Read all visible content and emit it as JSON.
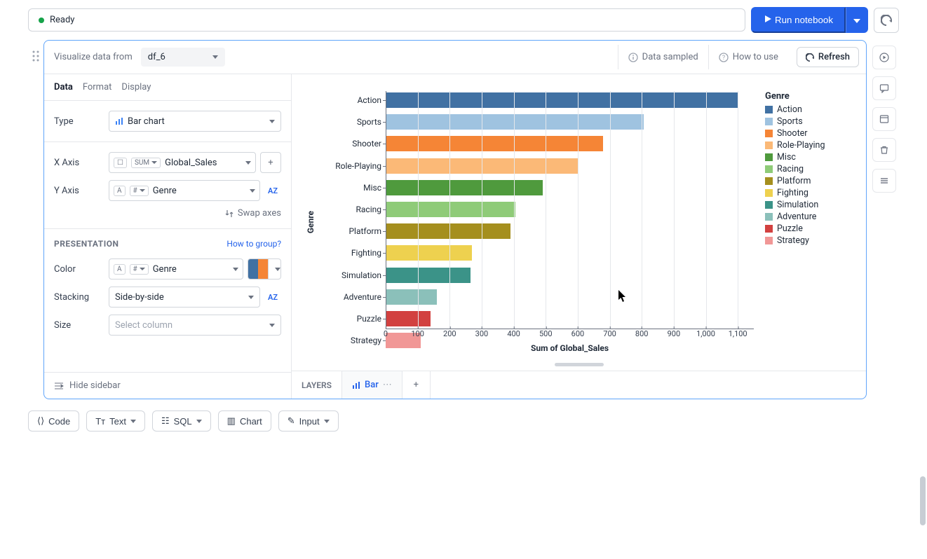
{
  "status": {
    "label": "Ready"
  },
  "topbar": {
    "run_label": "Run notebook"
  },
  "panel_header": {
    "prefix": "Visualize data from",
    "source": "df_6",
    "data_sampled": "Data sampled",
    "how_to_use": "How to use",
    "refresh": "Refresh"
  },
  "sidebar": {
    "tabs": {
      "data": "Data",
      "format": "Format",
      "display": "Display"
    },
    "type_label": "Type",
    "type_value": "Bar chart",
    "xaxis_label": "X Axis",
    "xaxis_agg": "SUM",
    "xaxis_field": "Global_Sales",
    "yaxis_label": "Y Axis",
    "yaxis_field": "Genre",
    "swap_axes": "Swap axes",
    "presentation_label": "PRESENTATION",
    "how_to_group": "How to group?",
    "color_label": "Color",
    "color_field": "Genre",
    "stacking_label": "Stacking",
    "stacking_value": "Side-by-side",
    "size_label": "Size",
    "size_placeholder": "Select column",
    "hide_sidebar": "Hide sidebar",
    "swatch_colors": [
      "#4171a3",
      "#f58536"
    ]
  },
  "layers": {
    "title": "LAYERS",
    "bar": "Bar"
  },
  "chart": {
    "type": "bar-horizontal",
    "yaxis_title": "Genre",
    "xaxis_title": "Sum of Global_Sales",
    "legend_title": "Genre",
    "xmax": 1150,
    "xticks": [
      {
        "v": 0,
        "l": "0"
      },
      {
        "v": 100,
        "l": "100"
      },
      {
        "v": 200,
        "l": "200"
      },
      {
        "v": 300,
        "l": "300"
      },
      {
        "v": 400,
        "l": "400"
      },
      {
        "v": 500,
        "l": "500"
      },
      {
        "v": 600,
        "l": "600"
      },
      {
        "v": 700,
        "l": "700"
      },
      {
        "v": 800,
        "l": "800"
      },
      {
        "v": 900,
        "l": "900"
      },
      {
        "v": 1000,
        "l": "1,000"
      },
      {
        "v": 1100,
        "l": "1,100"
      }
    ],
    "bars": [
      {
        "label": "Action",
        "value": 1100,
        "color": "#4171a3"
      },
      {
        "label": "Sports",
        "value": 805,
        "color": "#9fc3e0"
      },
      {
        "label": "Shooter",
        "value": 680,
        "color": "#f58536"
      },
      {
        "label": "Role-Playing",
        "value": 600,
        "color": "#fbb977"
      },
      {
        "label": "Misc",
        "value": 490,
        "color": "#4f9a3d"
      },
      {
        "label": "Racing",
        "value": 405,
        "color": "#8fcb78"
      },
      {
        "label": "Platform",
        "value": 390,
        "color": "#a58f1e"
      },
      {
        "label": "Fighting",
        "value": 270,
        "color": "#eed14f"
      },
      {
        "label": "Simulation",
        "value": 265,
        "color": "#3b9388"
      },
      {
        "label": "Adventure",
        "value": 160,
        "color": "#8bc0ba"
      },
      {
        "label": "Puzzle",
        "value": 140,
        "color": "#d24140"
      },
      {
        "label": "Strategy",
        "value": 110,
        "color": "#f19796"
      }
    ],
    "grid_color": "#e5e7eb"
  },
  "bottom_toolbar": {
    "code": "Code",
    "text": "Text",
    "sql": "SQL",
    "chart": "Chart",
    "input": "Input"
  }
}
